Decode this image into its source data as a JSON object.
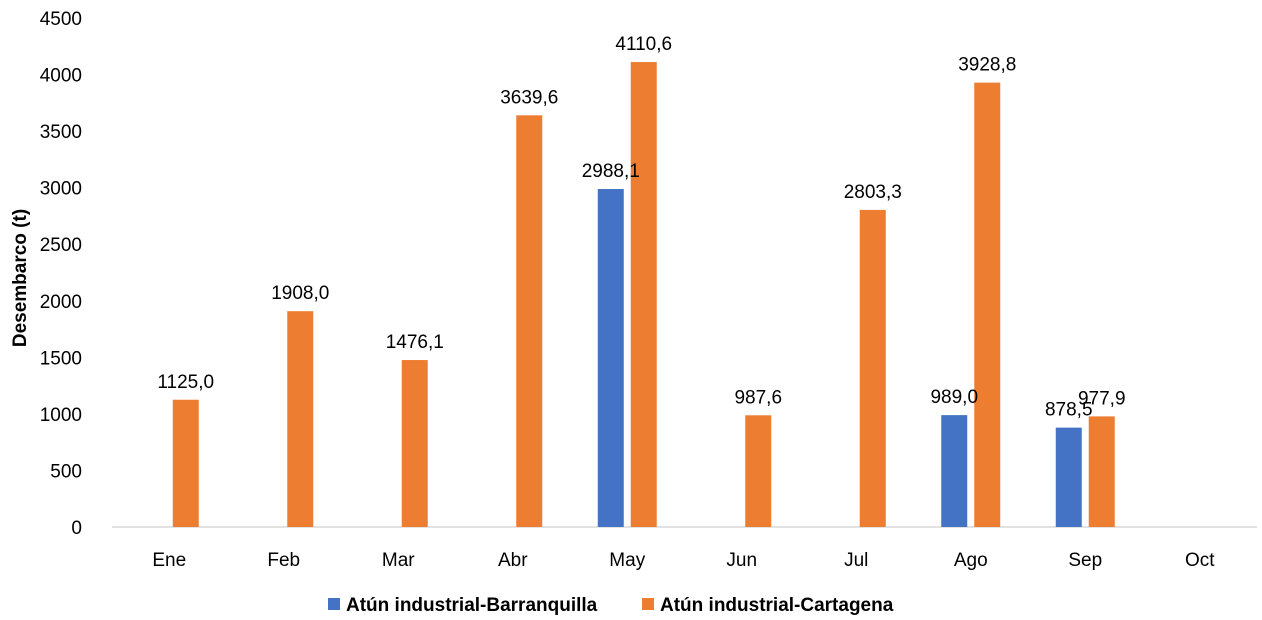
{
  "chart_data": {
    "type": "bar",
    "title": "",
    "xlabel": "",
    "ylabel": "Desembarco (t)",
    "ylim": [
      0,
      4500
    ],
    "ytick_step": 500,
    "yticks": [
      "0",
      "500",
      "1000",
      "1500",
      "2000",
      "2500",
      "3000",
      "3500",
      "4000",
      "4500"
    ],
    "grid": false,
    "legend_position": "bottom",
    "categories": [
      "Ene",
      "Feb",
      "Mar",
      "Abr",
      "May",
      "Jun",
      "Jul",
      "Ago",
      "Sep",
      "Oct"
    ],
    "series": [
      {
        "name": "Atún industrial-Barranquilla",
        "color": "#4472C4",
        "values": [
          null,
          null,
          null,
          null,
          2988.1,
          null,
          null,
          989.0,
          878.5,
          null
        ],
        "labels": [
          null,
          null,
          null,
          null,
          "2988,1",
          null,
          null,
          "989,0",
          "878,5",
          null
        ]
      },
      {
        "name": "Atún industrial-Cartagena",
        "color": "#ED7D31",
        "values": [
          1125.0,
          1908.0,
          1476.1,
          3639.6,
          4110.6,
          987.6,
          2803.3,
          3928.8,
          977.9,
          null
        ],
        "labels": [
          "1125,0",
          "1908,0",
          "1476,1",
          "3639,6",
          "4110,6",
          "987,6",
          "2803,3",
          "3928,8",
          "977,9",
          null
        ]
      }
    ]
  }
}
